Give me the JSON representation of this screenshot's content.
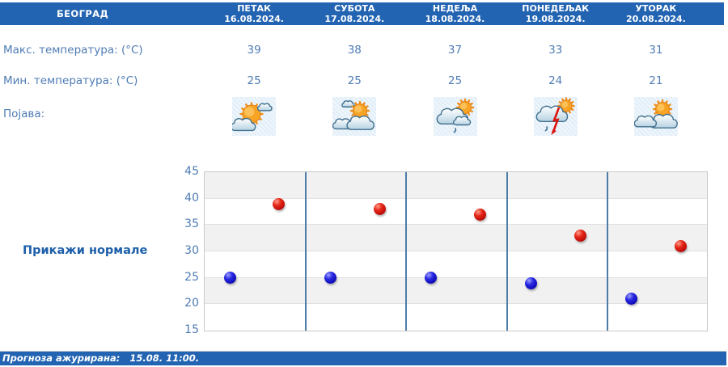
{
  "location": "БЕОГРАД",
  "labels": {
    "max_temp": "Макс. температура: (°C)",
    "min_temp": "Мин. температура: (°C)",
    "phenomenon": "Појава:"
  },
  "show_normals": "Прикажи нормале",
  "footer": {
    "updated_label": "Прогноза ажурирана:",
    "updated_value": "15.08. 11:00."
  },
  "days": [
    {
      "name": "ПЕТАК",
      "date": "16.08.2024.",
      "max": 39,
      "min": 25,
      "icon": "sun-with-clouds"
    },
    {
      "name": "СУБОТА",
      "date": "17.08.2024.",
      "max": 38,
      "min": 25,
      "icon": "increasing-clouds-sun"
    },
    {
      "name": "НЕДЕЉА",
      "date": "18.08.2024.",
      "max": 37,
      "min": 25,
      "icon": "cloudy-sun-light-rain"
    },
    {
      "name": "ПОНЕДЕЉАК",
      "date": "19.08.2024.",
      "max": 33,
      "min": 24,
      "icon": "cloudy-sun-thunderstorm"
    },
    {
      "name": "УТОРАК",
      "date": "20.08.2024.",
      "max": 31,
      "min": 21,
      "icon": "clouds-with-sun"
    }
  ],
  "chart_data": {
    "type": "scatter",
    "categories": [
      "16.08.2024.",
      "17.08.2024.",
      "18.08.2024.",
      "19.08.2024.",
      "20.08.2024."
    ],
    "series": [
      {
        "name": "Макс. температура (°C)",
        "color": "#cf1110",
        "values": [
          39,
          38,
          37,
          33,
          31
        ]
      },
      {
        "name": "Мин. температура (°C)",
        "color": "#1513cf",
        "values": [
          25,
          25,
          25,
          24,
          21
        ]
      }
    ],
    "ylim": [
      15,
      45
    ],
    "ytick_step": 5,
    "yticks": [
      45,
      40,
      35,
      30,
      25,
      20,
      15
    ],
    "grid": true,
    "legend": "none",
    "band_shading": "alternating 5-degree horizontal bands, gray from 40-45 downward alternating",
    "day_separators": true
  },
  "colors": {
    "bar_blue": "#2264b2",
    "text_blue": "#4f7cb4",
    "link_blue": "#1d5fa9",
    "separator_blue": "#4e7ca8",
    "band_gray": "#f1f1f1",
    "max_dot": "#cf1110",
    "min_dot": "#1513cf"
  }
}
